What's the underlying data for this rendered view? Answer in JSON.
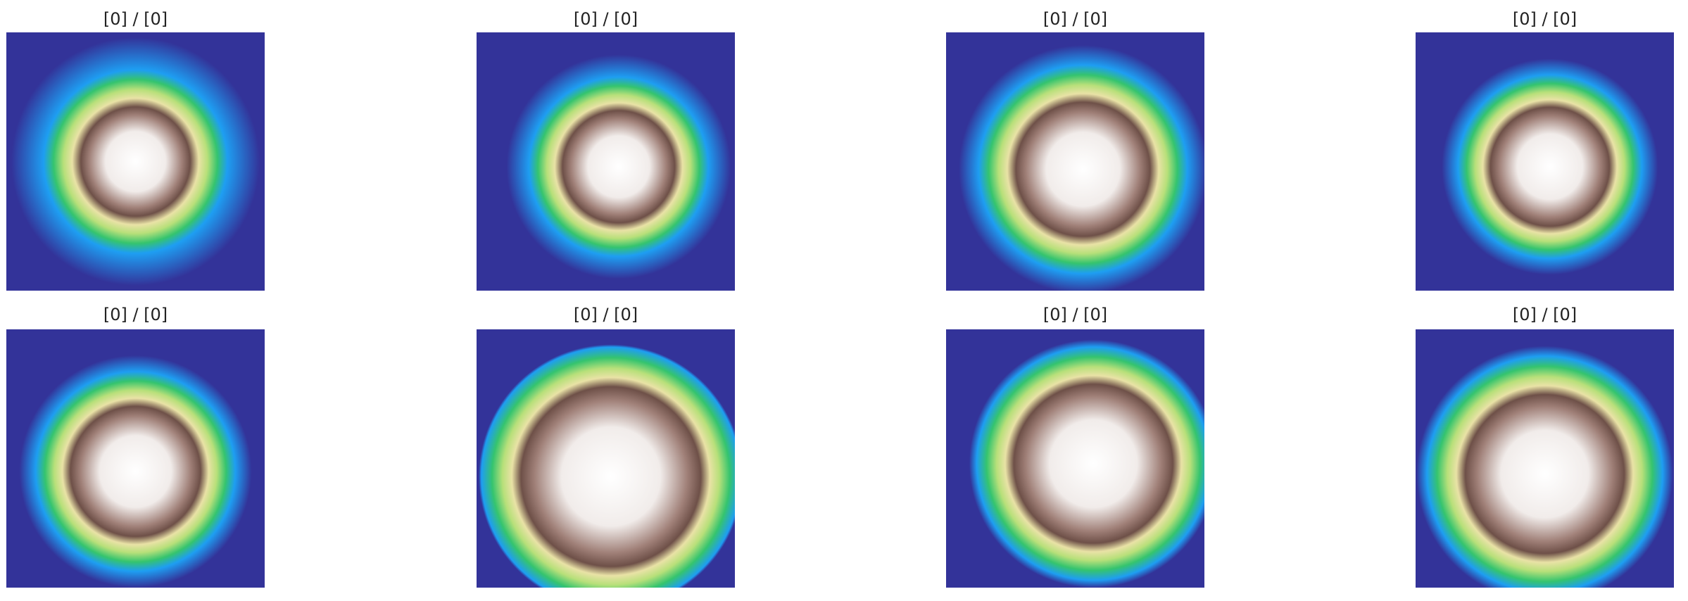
{
  "panels": [
    {
      "title": "[0] / [0]"
    },
    {
      "title": "[0] / [0]"
    },
    {
      "title": "[0] / [0]"
    },
    {
      "title": "[0] / [0]"
    },
    {
      "title": "[0] / [0]"
    },
    {
      "title": "[0] / [0]"
    },
    {
      "title": "[0] / [0]"
    },
    {
      "title": "[0] / [0]"
    }
  ]
}
